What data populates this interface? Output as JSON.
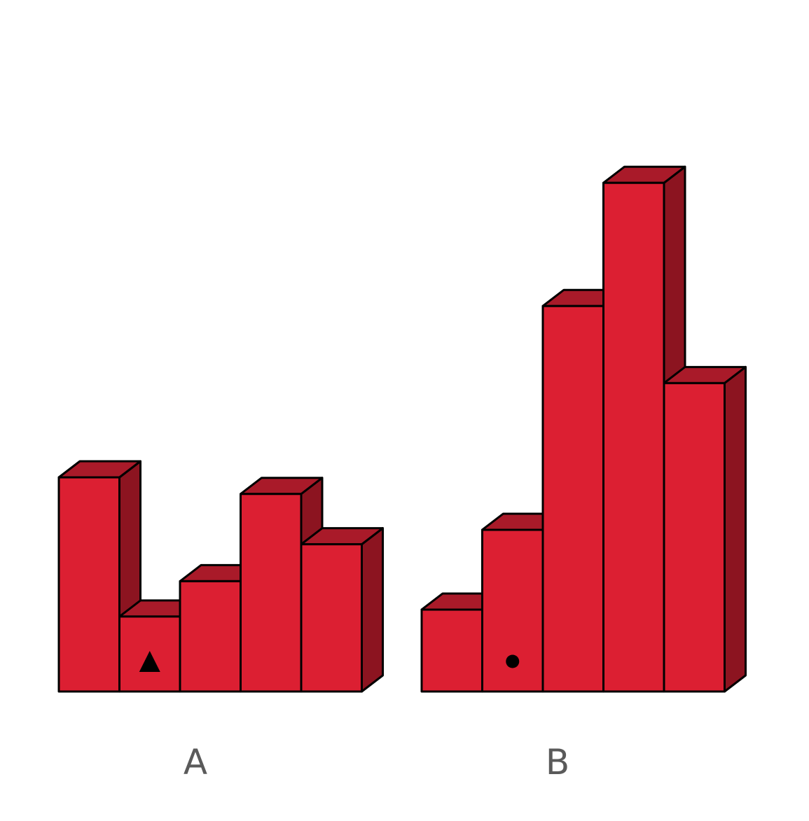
{
  "colors": {
    "front": "#dc1f32",
    "top": "#a91a29",
    "side": "#8c1420",
    "stroke": "#000000",
    "label": "#5a5a5a"
  },
  "chart_data": [
    {
      "type": "bar",
      "label": "A",
      "values": [
        4,
        1.4,
        2.06,
        3.69,
        2.75
      ],
      "markers": [
        {
          "bar_index": 1,
          "shape": "triangle"
        }
      ]
    },
    {
      "type": "bar",
      "label": "B",
      "values": [
        1.53,
        3.02,
        7.2,
        9.5,
        5.76
      ],
      "markers": [
        {
          "bar_index": 1,
          "shape": "circle"
        }
      ]
    }
  ]
}
